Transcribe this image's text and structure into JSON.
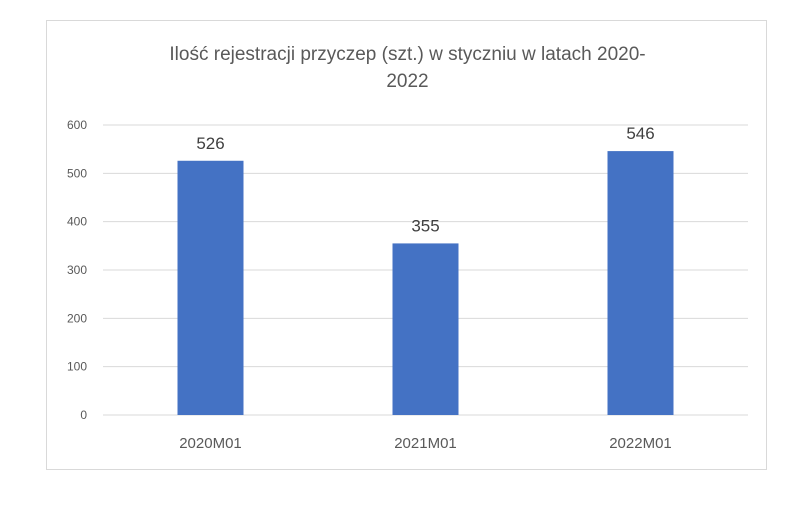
{
  "chart_data": {
    "type": "bar",
    "title_lines": [
      "Ilość rejestracji przyczep (szt.) w styczniu w latach 2020-",
      "2022"
    ],
    "categories": [
      "2020M01",
      "2021M01",
      "2022M01"
    ],
    "values": [
      526,
      355,
      546
    ],
    "data_labels": [
      "526",
      "355",
      "546"
    ],
    "ylim": [
      0,
      600
    ],
    "yticks": [
      0,
      100,
      200,
      300,
      400,
      500,
      600
    ],
    "grid": true,
    "legend": "none",
    "colors": {
      "bar": "#4472c4",
      "grid": "#d9d9d9",
      "text": "#595959",
      "label": "#404040"
    }
  }
}
